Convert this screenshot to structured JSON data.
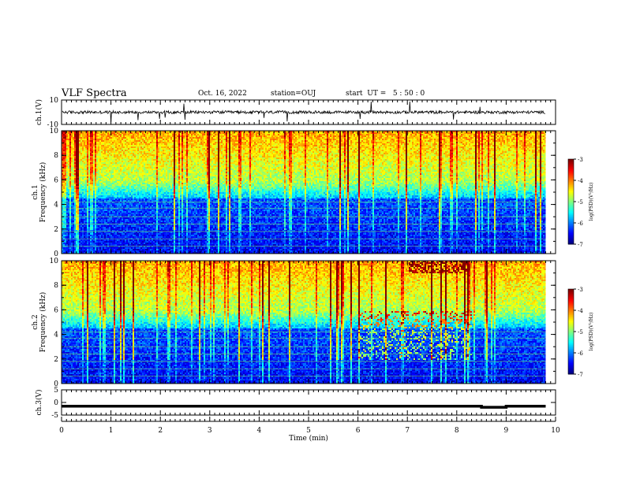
{
  "header": {
    "title": "VLF Spectra",
    "date": "Oct. 16, 2022",
    "station": "station=OUJ",
    "start": "start  UT =   5 : 50 : 0"
  },
  "chart_data": [
    {
      "type": "line",
      "name": "ch1-waveform",
      "ylabel": "ch.1(V)",
      "ylim": [
        -10,
        10
      ],
      "yticks": [
        "10",
        "-10"
      ],
      "x": [
        0,
        10
      ],
      "baseline": 0
    },
    {
      "type": "heatmap",
      "name": "ch1-spectrogram",
      "ylabel": "ch.1\nFrequency (kHz)",
      "ylim": [
        0,
        10
      ],
      "yticks": [
        "0",
        "2",
        "4",
        "6",
        "8",
        "10"
      ],
      "xlim": [
        0,
        10
      ],
      "colorbar": {
        "label": "log(PSD)(V²/Hz)",
        "range": [
          -7,
          -3
        ],
        "ticks": [
          "-3",
          "-4",
          "-5",
          "-6",
          "-7"
        ]
      }
    },
    {
      "type": "heatmap",
      "name": "ch2-spectrogram",
      "ylabel": "ch.2\nFrequency (kHz)",
      "ylim": [
        0,
        10
      ],
      "yticks": [
        "0",
        "2",
        "4",
        "6",
        "8",
        "10"
      ],
      "xlim": [
        0,
        10
      ],
      "colorbar": {
        "label": "log(PSD)(V²/Hz)",
        "range": [
          -7,
          -3
        ],
        "ticks": [
          "-3",
          "-4",
          "-5",
          "-6",
          "-7"
        ]
      }
    },
    {
      "type": "line",
      "name": "ch3-level",
      "ylabel": "ch.3(V)",
      "ylim": [
        -5,
        5
      ],
      "yticks": [
        "5",
        "0",
        "-5"
      ],
      "x": [
        0,
        8.5,
        8.5,
        9.0,
        9.0,
        9.8
      ],
      "y": [
        -1.5,
        -1.5,
        -1.9,
        -1.9,
        -1.5,
        -1.5
      ]
    }
  ],
  "xaxis": {
    "label": "Time (min)",
    "xlim": [
      0,
      10
    ],
    "ticks": [
      "0",
      "1",
      "2",
      "3",
      "4",
      "5",
      "6",
      "7",
      "8",
      "9",
      "10"
    ]
  },
  "colors": {
    "background": "#ffffff",
    "spec_low": "#00007f",
    "spec_high": "#ff0000"
  }
}
